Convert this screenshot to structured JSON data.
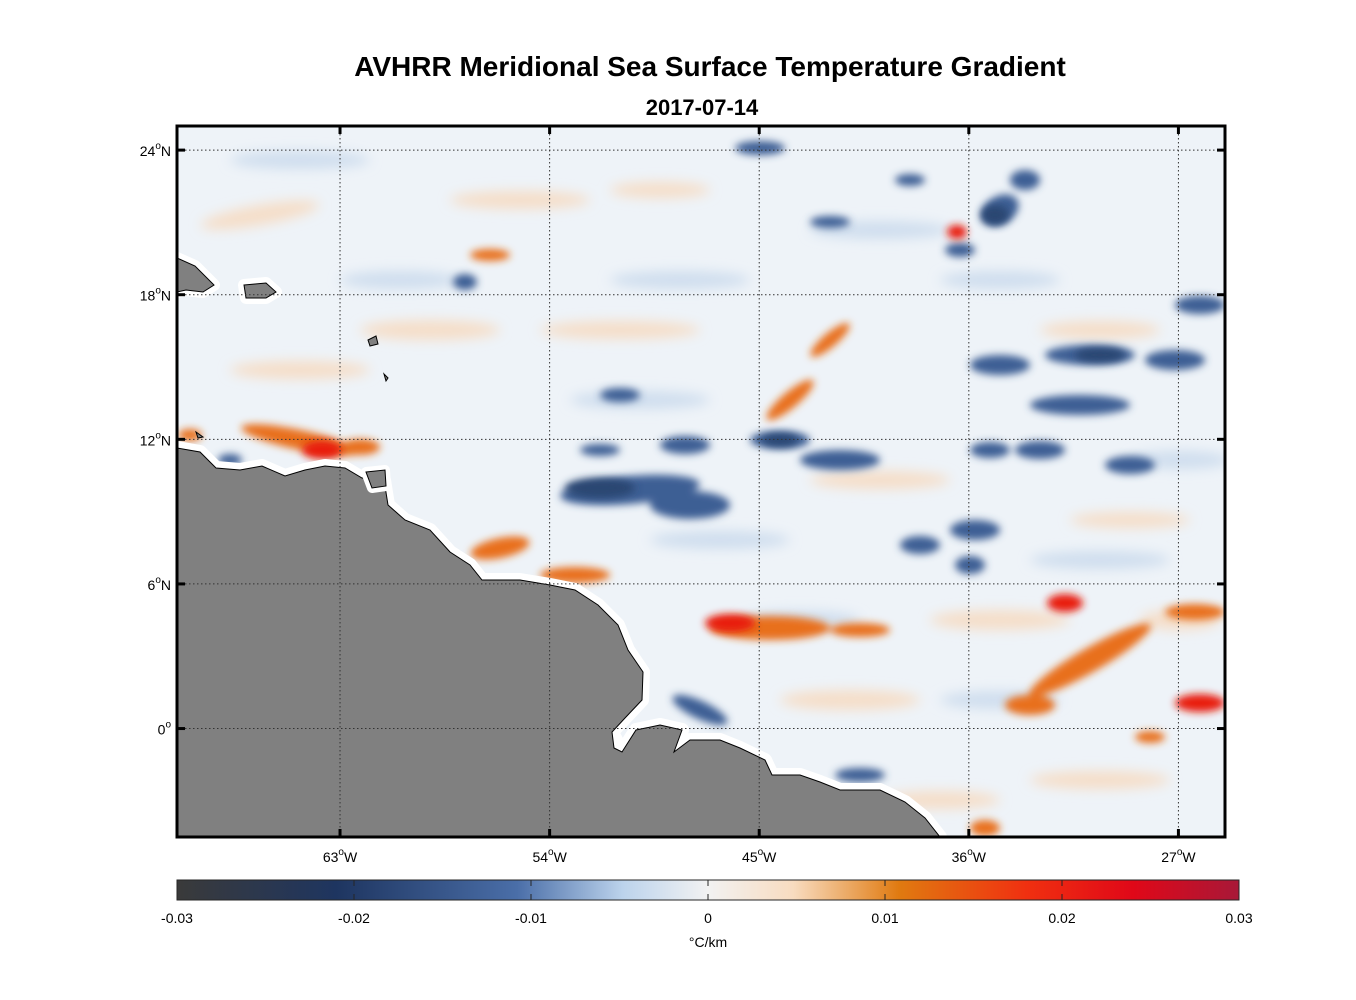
{
  "title": "AVHRR Meridional Sea Surface Temperature Gradient",
  "subtitle": "2017-07-14",
  "map": {
    "lon_range": [
      -70,
      -25
    ],
    "lat_range": [
      -4.5,
      25
    ],
    "lat_ticks": [
      {
        "value": 24,
        "text": "24",
        "suffix": "N"
      },
      {
        "value": 18,
        "text": "18",
        "suffix": "N"
      },
      {
        "value": 12,
        "text": "12",
        "suffix": "N"
      },
      {
        "value": 6,
        "text": "6",
        "suffix": "N"
      },
      {
        "value": 0,
        "text": "0",
        "suffix": ""
      }
    ],
    "lon_ticks": [
      {
        "value": -63,
        "text": "63",
        "suffix": "W"
      },
      {
        "value": -54,
        "text": "54",
        "suffix": "W"
      },
      {
        "value": -45,
        "text": "45",
        "suffix": "W"
      },
      {
        "value": -36,
        "text": "36",
        "suffix": "W"
      },
      {
        "value": -27,
        "text": "27",
        "suffix": "W"
      }
    ],
    "grid": true,
    "land_color": "#808080",
    "ocean_background": "#eef3f8"
  },
  "colorbar": {
    "min": -0.03,
    "max": 0.03,
    "tick_labels": [
      "-0.03",
      "-0.02",
      "-0.01",
      "0",
      "0.01",
      "0.02",
      "0.03"
    ],
    "tick_values": [
      -0.03,
      -0.02,
      -0.01,
      0,
      0.01,
      0.02,
      0.03
    ],
    "unit_label": "°C/km",
    "colors": [
      "#3a3a3a",
      "#1e3560",
      "#4a6ea8",
      "#bcd3ec",
      "#f2f2f2",
      "#f8dcc0",
      "#e07a10",
      "#f03010",
      "#e00818",
      "#a81838"
    ]
  },
  "features": {
    "positive_color": "#e8701a",
    "strong_positive_color": "#e81e0e",
    "negative_color": "#3e5f94",
    "strong_negative_color": "#2a4672"
  }
}
